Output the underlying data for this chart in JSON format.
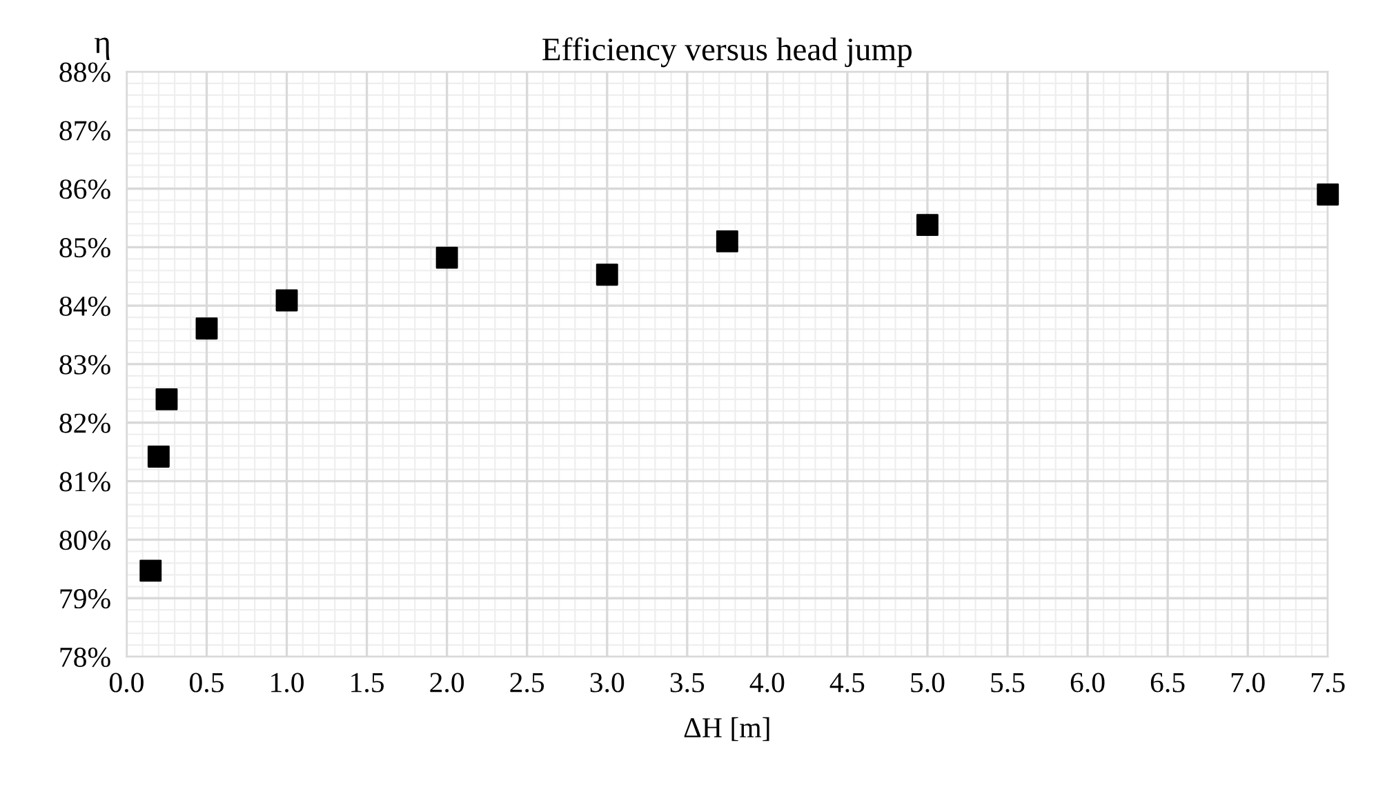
{
  "chart_data": {
    "type": "scatter",
    "title": "Efficiency versus head jump",
    "xlabel": "ΔH [m]",
    "ylabel": "η",
    "x": [
      0.15,
      0.2,
      0.25,
      0.5,
      1.0,
      2.0,
      3.0,
      3.75,
      5.0,
      7.5
    ],
    "series": [
      {
        "color": "#000000",
        "values": [
          79.47,
          81.42,
          82.4,
          83.61,
          84.09,
          84.82,
          84.53,
          85.1,
          85.38,
          85.9
        ]
      }
    ],
    "marker": "square",
    "xlim": [
      0,
      7.5
    ],
    "xticks": [
      {
        "value": 0,
        "label": "0.0"
      },
      {
        "value": 0.5,
        "label": "0.5"
      },
      {
        "value": 1,
        "label": "1.0"
      },
      {
        "value": 1.5,
        "label": "1.5"
      },
      {
        "value": 2,
        "label": "2.0"
      },
      {
        "value": 2.5,
        "label": "2.5"
      },
      {
        "value": 3,
        "label": "3.0"
      },
      {
        "value": 3.5,
        "label": "3.5"
      },
      {
        "value": 4,
        "label": "4.0"
      },
      {
        "value": 4.5,
        "label": "4.5"
      },
      {
        "value": 5,
        "label": "5.0"
      },
      {
        "value": 5.5,
        "label": "5.5"
      },
      {
        "value": 6,
        "label": "6.0"
      },
      {
        "value": 6.5,
        "label": "6.5"
      },
      {
        "value": 7,
        "label": "7.0"
      },
      {
        "value": 7.5,
        "label": "7.5"
      }
    ],
    "ylim": [
      78,
      88
    ],
    "yticks": [
      {
        "value": 78,
        "label": "78%"
      },
      {
        "value": 79,
        "label": "79%"
      },
      {
        "value": 80,
        "label": "80%"
      },
      {
        "value": 81,
        "label": "81%"
      },
      {
        "value": 82,
        "label": "82%"
      },
      {
        "value": 83,
        "label": "83%"
      },
      {
        "value": 84,
        "label": "84%"
      },
      {
        "value": 85,
        "label": "85%"
      },
      {
        "value": 86,
        "label": "86%"
      },
      {
        "value": 87,
        "label": "87%"
      },
      {
        "value": 88,
        "label": "88%"
      }
    ],
    "grid": true
  }
}
